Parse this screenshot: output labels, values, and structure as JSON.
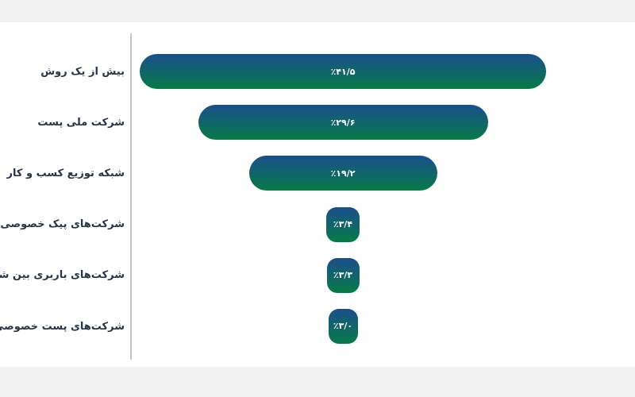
{
  "chart_data": {
    "type": "bar",
    "variant": "centered-funnel-horizontal",
    "orientation": "horizontal",
    "bar_alignment": "center",
    "title": "",
    "xlabel": "",
    "ylabel": "",
    "grid": false,
    "legend": false,
    "xlim": [
      0,
      41.5
    ],
    "categories": [
      "بیش از یک روش",
      "شرکت ملی پست",
      "شبکه توزیع کسب و کار",
      "شرکت‌های پیک خصوصی",
      "شرکت‌های باربری بین شهری",
      "شرکت‌های پست خصوصی"
    ],
    "values": [
      41.5,
      29.6,
      19.2,
      3.4,
      3.3,
      3.0
    ],
    "value_labels": [
      "٪۴۱/۵",
      "٪۲۹/۶",
      "٪۱۹/۲",
      "٪۳/۴",
      "٪۳/۳",
      "٪۳/۰"
    ]
  },
  "colors": {
    "bar_gradient_top": "#1b4e8d",
    "bar_gradient_bottom": "#077a45",
    "axis_line": "#c6c6c6",
    "label_text": "#25364b",
    "value_text": "#ffffff",
    "card_background": "#ffffff",
    "page_background": "#f2f2f2"
  }
}
